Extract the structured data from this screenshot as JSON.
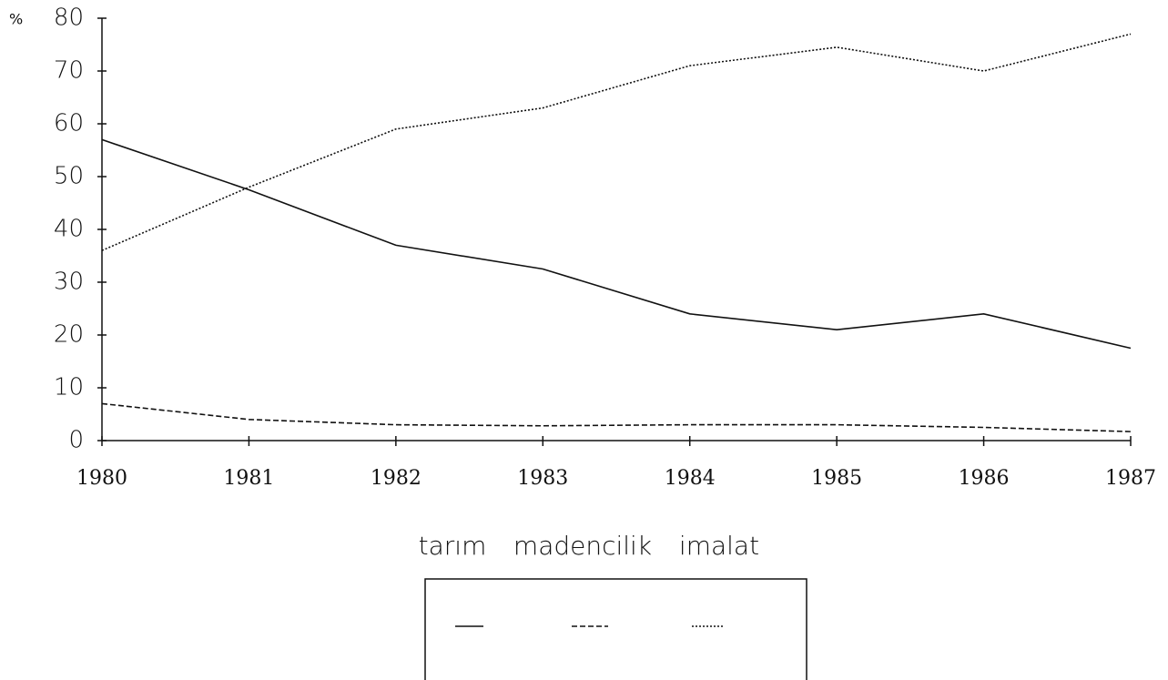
{
  "chart_data": {
    "type": "line",
    "ylabel": "%",
    "categories": [
      "1980",
      "1981",
      "1982",
      "1983",
      "1984",
      "1985",
      "1986",
      "1987"
    ],
    "series": [
      {
        "name": "tarım",
        "color": "#111111",
        "style": "solid",
        "values": [
          57,
          47.5,
          37,
          32.5,
          24,
          21,
          24,
          17.5
        ]
      },
      {
        "name": "madencilik",
        "color": "#111111",
        "style": "dashed",
        "values": [
          7,
          4,
          3,
          2.8,
          3,
          3,
          2.5,
          1.7
        ]
      },
      {
        "name": "imalat",
        "color": "#111111",
        "style": "dotted",
        "values": [
          36,
          48,
          59,
          63,
          71,
          74.5,
          70,
          77
        ]
      }
    ],
    "ylim": [
      0,
      80
    ],
    "yticks": [
      0,
      10,
      20,
      30,
      40,
      50,
      60,
      70,
      80
    ],
    "grid": false,
    "legend": "bottom"
  }
}
